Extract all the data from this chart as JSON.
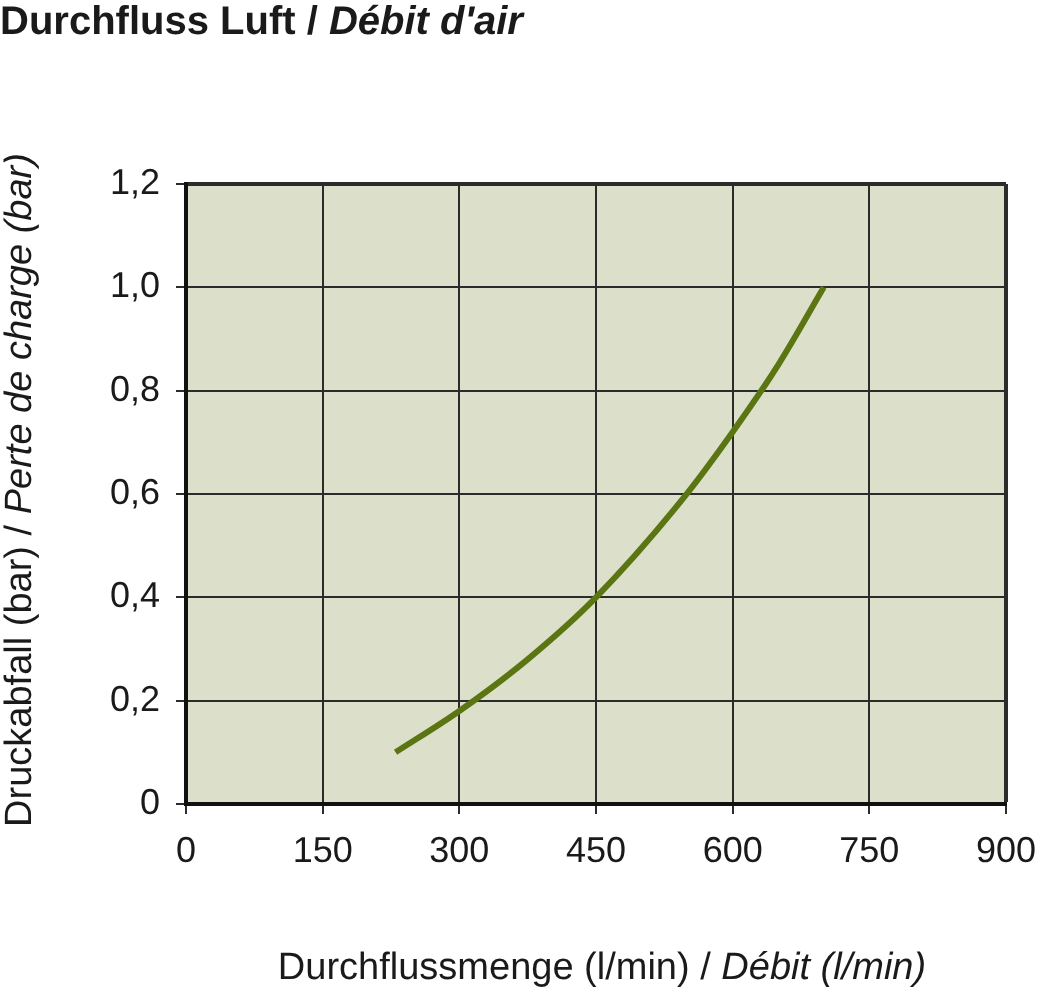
{
  "chart_data": {
    "type": "line",
    "title": "Durchfluss Luft / Débit d'air",
    "xlabel": "Durchflussmenge (l/min) / Débit (l/min)",
    "ylabel": "Druckabfall (bar) / Perte de charge (bar)",
    "x": [
      230,
      300,
      375,
      450,
      545,
      600,
      650,
      700
    ],
    "series": [
      {
        "color": "#5b7512",
        "values": [
          0.1,
          0.18,
          0.28,
          0.4,
          0.59,
          0.72,
          0.85,
          1
        ]
      }
    ],
    "xlim": [
      0,
      900
    ],
    "xticks": [
      0,
      150,
      300,
      450,
      600,
      750,
      900
    ],
    "ylim": [
      0,
      1.2
    ],
    "yticks": [
      0,
      {
        "value": 0.2,
        "label": "0,2"
      },
      {
        "value": 0.4,
        "label": "0,4"
      },
      {
        "value": 0.6,
        "label": "0,6"
      },
      {
        "value": 0.8,
        "label": "0,8"
      },
      {
        "value": 1,
        "label": "1,0"
      },
      {
        "value": 1.2,
        "label": "1,2"
      }
    ],
    "grid": true,
    "marker": "none"
  }
}
